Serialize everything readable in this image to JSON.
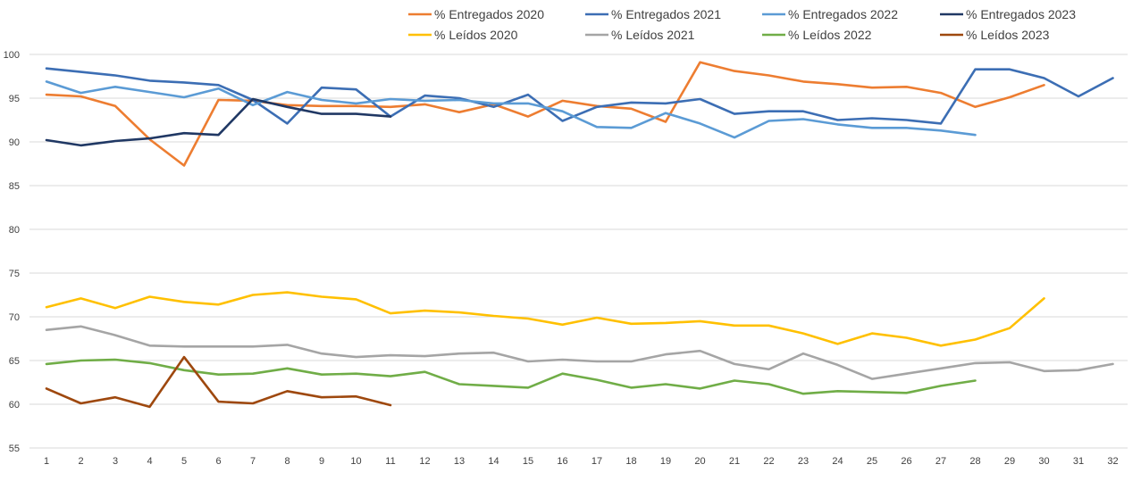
{
  "chart_data": {
    "type": "line",
    "title": "",
    "xlabel": "",
    "ylabel": "",
    "ylim": [
      55,
      100
    ],
    "yticks": [
      55,
      60,
      65,
      70,
      75,
      80,
      85,
      90,
      95,
      100
    ],
    "grid": true,
    "legend_position": "top-right",
    "x": [
      1,
      2,
      3,
      4,
      5,
      6,
      7,
      8,
      9,
      10,
      11,
      12,
      13,
      14,
      15,
      16,
      17,
      18,
      19,
      20,
      21,
      22,
      23,
      24,
      25,
      26,
      27,
      28,
      29,
      30,
      31,
      32
    ],
    "series": [
      {
        "name": "% Entregados 2020",
        "color": "#ED7D31",
        "values": [
          95.4,
          95.2,
          94.1,
          90.3,
          87.3,
          94.8,
          94.7,
          94.2,
          94.1,
          94.1,
          94.0,
          94.3,
          93.4,
          94.3,
          92.9,
          94.7,
          94.1,
          93.8,
          92.3,
          99.1,
          98.1,
          97.6,
          96.9,
          96.6,
          96.2,
          96.3,
          95.6,
          94.0,
          95.1,
          96.5,
          null,
          null
        ]
      },
      {
        "name": "% Entregados 2021",
        "color": "#3C6EB4",
        "values": [
          98.4,
          98.0,
          97.6,
          97.0,
          96.8,
          96.5,
          94.8,
          92.1,
          96.2,
          96.0,
          92.9,
          95.3,
          95.0,
          94.0,
          95.4,
          92.4,
          94.0,
          94.5,
          94.4,
          94.9,
          93.2,
          93.5,
          93.5,
          92.5,
          92.7,
          92.5,
          92.1,
          98.3,
          98.3,
          97.3,
          95.2,
          97.3
        ]
      },
      {
        "name": "% Entregados 2022",
        "color": "#5B9BD5",
        "values": [
          96.9,
          95.6,
          96.3,
          95.7,
          95.1,
          96.1,
          94.2,
          95.7,
          94.8,
          94.4,
          94.9,
          94.7,
          94.8,
          94.4,
          94.4,
          93.5,
          91.7,
          91.6,
          93.3,
          92.1,
          90.5,
          92.4,
          92.6,
          92.0,
          91.6,
          91.6,
          91.3,
          90.8,
          null,
          null,
          null,
          null
        ]
      },
      {
        "name": "% Entregados 2023",
        "color": "#203864",
        "values": [
          90.2,
          89.6,
          90.1,
          90.4,
          91.0,
          90.8,
          94.9,
          94.0,
          93.2,
          93.2,
          92.9,
          null,
          null,
          null,
          null,
          null,
          null,
          null,
          null,
          null,
          null,
          null,
          null,
          null,
          null,
          null,
          null,
          null,
          null,
          null,
          null,
          null
        ]
      },
      {
        "name": "% Leídos 2020",
        "color": "#FFC000",
        "values": [
          71.1,
          72.1,
          71.0,
          72.3,
          71.7,
          71.4,
          72.5,
          72.8,
          72.3,
          72.0,
          70.4,
          70.7,
          70.5,
          70.1,
          69.8,
          69.1,
          69.9,
          69.2,
          69.3,
          69.5,
          69.0,
          69.0,
          68.1,
          66.9,
          68.1,
          67.6,
          66.7,
          67.4,
          68.7,
          72.1,
          null,
          null
        ]
      },
      {
        "name": "% Leídos 2021",
        "color": "#A5A5A5",
        "values": [
          68.5,
          68.9,
          67.9,
          66.7,
          66.6,
          66.6,
          66.6,
          66.8,
          65.8,
          65.4,
          65.6,
          65.5,
          65.8,
          65.9,
          64.9,
          65.1,
          64.9,
          64.9,
          65.7,
          66.1,
          64.6,
          64.0,
          65.8,
          64.5,
          62.9,
          63.5,
          64.1,
          64.7,
          64.8,
          63.8,
          63.9,
          64.6
        ]
      },
      {
        "name": "% Leídos 2022",
        "color": "#70AD47",
        "values": [
          64.6,
          65.0,
          65.1,
          64.7,
          63.9,
          63.4,
          63.5,
          64.1,
          63.4,
          63.5,
          63.2,
          63.7,
          62.3,
          62.1,
          61.9,
          63.5,
          62.8,
          61.9,
          62.3,
          61.8,
          62.7,
          62.3,
          61.2,
          61.5,
          61.4,
          61.3,
          62.1,
          62.7,
          null,
          null,
          null,
          null
        ]
      },
      {
        "name": "% Leídos 2023",
        "color": "#9E480E",
        "values": [
          61.8,
          60.1,
          60.8,
          59.7,
          65.4,
          60.3,
          60.1,
          61.5,
          60.8,
          60.9,
          59.9,
          null,
          null,
          null,
          null,
          null,
          null,
          null,
          null,
          null,
          null,
          null,
          null,
          null,
          null,
          null,
          null,
          null,
          null,
          null,
          null,
          null
        ]
      }
    ]
  }
}
